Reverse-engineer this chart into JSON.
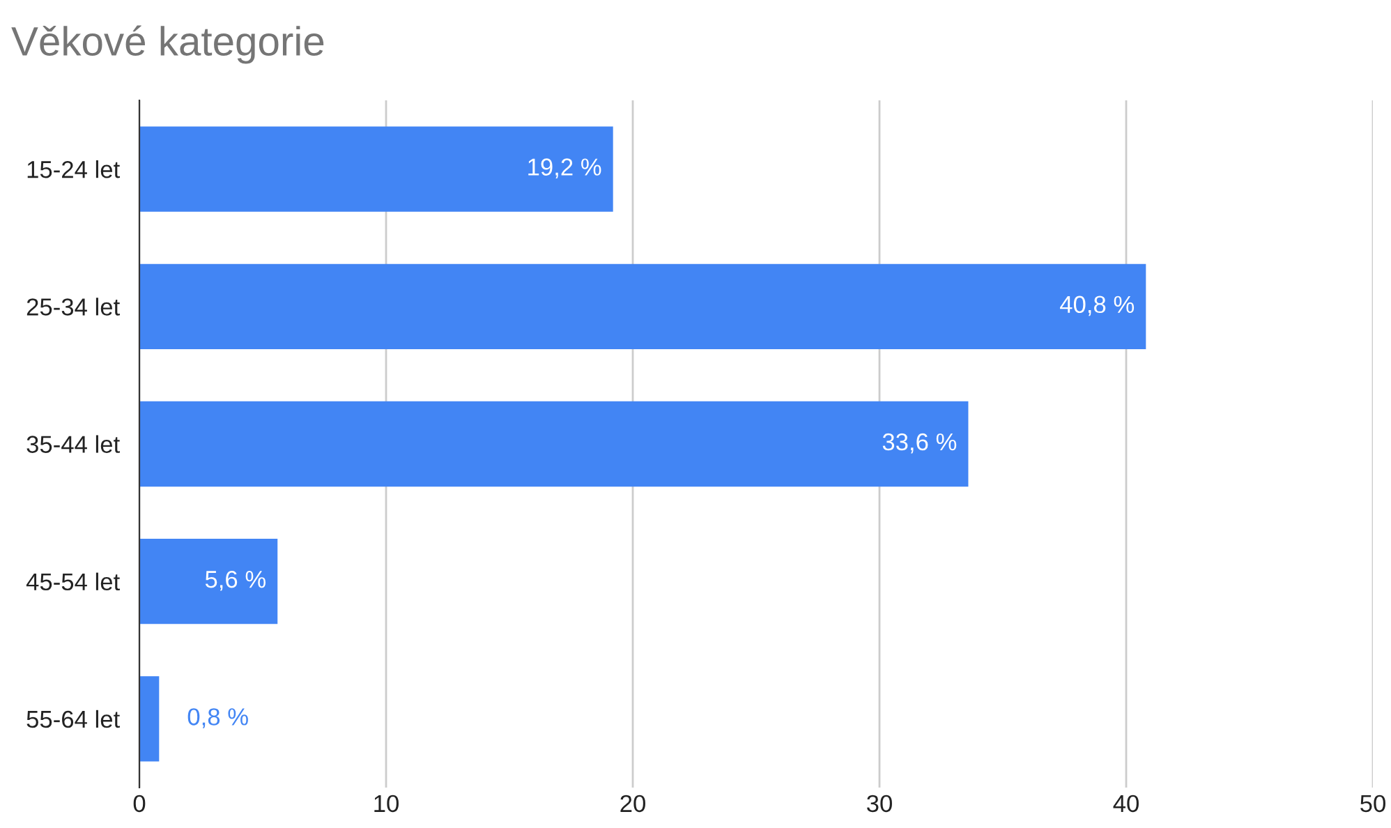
{
  "chart_data": {
    "type": "bar",
    "title": "Věkové kategorie",
    "orientation": "horizontal",
    "categories": [
      "15-24 let",
      "25-34 let",
      "35-44 let",
      "45-54 let",
      "55-64 let"
    ],
    "series": [
      {
        "color": "#4285f4",
        "values": [
          19.2,
          40.8,
          33.6,
          5.6,
          0.8
        ],
        "value_labels": [
          "19,2 %",
          "40,8 %",
          "33,6 %",
          "5,6 %",
          "0,8 %"
        ]
      }
    ],
    "xlim": [
      0,
      50
    ],
    "xticks": [
      0,
      10,
      20,
      30,
      40,
      50
    ],
    "grid": "x"
  }
}
